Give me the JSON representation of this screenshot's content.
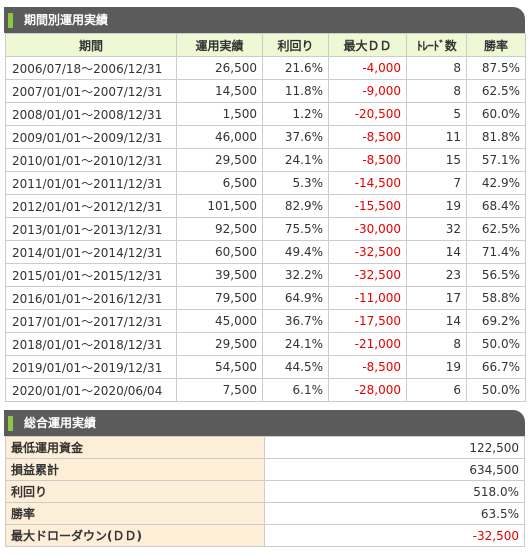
{
  "period_section": {
    "title": "期間別運用実績",
    "columns": [
      "期間",
      "運用実績",
      "利回り",
      "最大ＤＤ",
      "ﾄﾚｰﾄﾞ数",
      "勝率"
    ],
    "rows": [
      [
        "2006/07/18～2006/12/31",
        "26,500",
        "21.6%",
        "-4,000",
        "8",
        "87.5%"
      ],
      [
        "2007/01/01～2007/12/31",
        "14,500",
        "11.8%",
        "-9,000",
        "8",
        "62.5%"
      ],
      [
        "2008/01/01～2008/12/31",
        "1,500",
        "1.2%",
        "-20,500",
        "5",
        "60.0%"
      ],
      [
        "2009/01/01～2009/12/31",
        "46,000",
        "37.6%",
        "-8,500",
        "11",
        "81.8%"
      ],
      [
        "2010/01/01～2010/12/31",
        "29,500",
        "24.1%",
        "-8,500",
        "15",
        "57.1%"
      ],
      [
        "2011/01/01～2011/12/31",
        "6,500",
        "5.3%",
        "-14,500",
        "7",
        "42.9%"
      ],
      [
        "2012/01/01～2012/12/31",
        "101,500",
        "82.9%",
        "-15,500",
        "19",
        "68.4%"
      ],
      [
        "2013/01/01～2013/12/31",
        "92,500",
        "75.5%",
        "-30,000",
        "32",
        "62.5%"
      ],
      [
        "2014/01/01～2014/12/31",
        "60,500",
        "49.4%",
        "-32,500",
        "14",
        "71.4%"
      ],
      [
        "2015/01/01～2015/12/31",
        "39,500",
        "32.2%",
        "-32,500",
        "23",
        "56.5%"
      ],
      [
        "2016/01/01～2016/12/31",
        "79,500",
        "64.9%",
        "-11,000",
        "17",
        "58.8%"
      ],
      [
        "2017/01/01～2017/12/31",
        "45,000",
        "36.7%",
        "-17,500",
        "14",
        "69.2%"
      ],
      [
        "2018/01/01～2018/12/31",
        "29,500",
        "24.1%",
        "-21,000",
        "8",
        "50.0%"
      ],
      [
        "2019/01/01～2019/12/31",
        "54,500",
        "44.5%",
        "-8,500",
        "19",
        "66.7%"
      ],
      [
        "2020/01/01～2020/06/04",
        "7,500",
        "6.1%",
        "-28,000",
        "6",
        "50.0%"
      ]
    ]
  },
  "total_section": {
    "title": "総合運用実績",
    "rows": [
      {
        "label": "最低運用資金",
        "value": "122,500"
      },
      {
        "label": "損益累計",
        "value": "634,500"
      },
      {
        "label": "利回り",
        "value": "518.0%"
      },
      {
        "label": "勝率",
        "value": "63.5%"
      },
      {
        "label": "最大ドローダウン(ＤＤ)",
        "value": "-32,500"
      }
    ]
  },
  "colors": {
    "header_bg": "#5b5b5b",
    "header_accent": "#8dc63f",
    "column_header_bg": "#eef8d4",
    "label_bg": "#fdeed7",
    "negative": "#e60000"
  }
}
